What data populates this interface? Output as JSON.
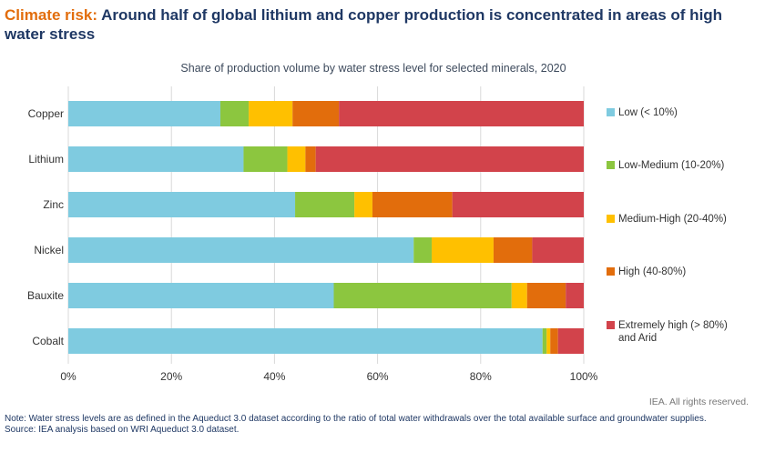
{
  "title": {
    "kicker": "Climate risk:",
    "text": "Around half of global lithium and copper production is concentrated in areas of high water stress"
  },
  "chart_data": {
    "type": "bar",
    "orientation": "horizontal",
    "stacked": true,
    "title": "Share of production volume by water stress level for selected minerals, 2020",
    "categories": [
      "Copper",
      "Lithium",
      "Zinc",
      "Nickel",
      "Bauxite",
      "Cobalt"
    ],
    "series": [
      {
        "name": "Low (< 10%)",
        "color": "#7fcbe0",
        "values": [
          29.5,
          34,
          44,
          67,
          51.5,
          92
        ]
      },
      {
        "name": "Low-Medium (10-20%)",
        "color": "#8cc63f",
        "values": [
          5.5,
          8.5,
          11.5,
          3.5,
          34.5,
          0.8
        ]
      },
      {
        "name": "Medium-High (20-40%)",
        "color": "#ffc000",
        "values": [
          8.5,
          3.5,
          3.5,
          12,
          3,
          0.7
        ]
      },
      {
        "name": "High (40-80%)",
        "color": "#e26d0c",
        "values": [
          9,
          2,
          15.5,
          7.5,
          7.5,
          1.5
        ]
      },
      {
        "name": "Extremely high (> 80%) and Arid",
        "color": "#d2434b",
        "values": [
          47.5,
          52,
          25.5,
          10,
          3.5,
          5
        ]
      }
    ],
    "xlim": [
      0,
      100
    ],
    "xticks": [
      "0%",
      "20%",
      "40%",
      "60%",
      "80%",
      "100%"
    ],
    "xlabel": "",
    "ylabel": "",
    "legend": "right"
  },
  "footer": {
    "copyright": "IEA. All rights reserved.",
    "note": "Note: Water stress levels are as defined in the Aqueduct 3.0 dataset according to the ratio of total water withdrawals over the total available surface and groundwater supplies.",
    "source": "Source: IEA analysis based on WRI Aqueduct 3.0 dataset."
  }
}
